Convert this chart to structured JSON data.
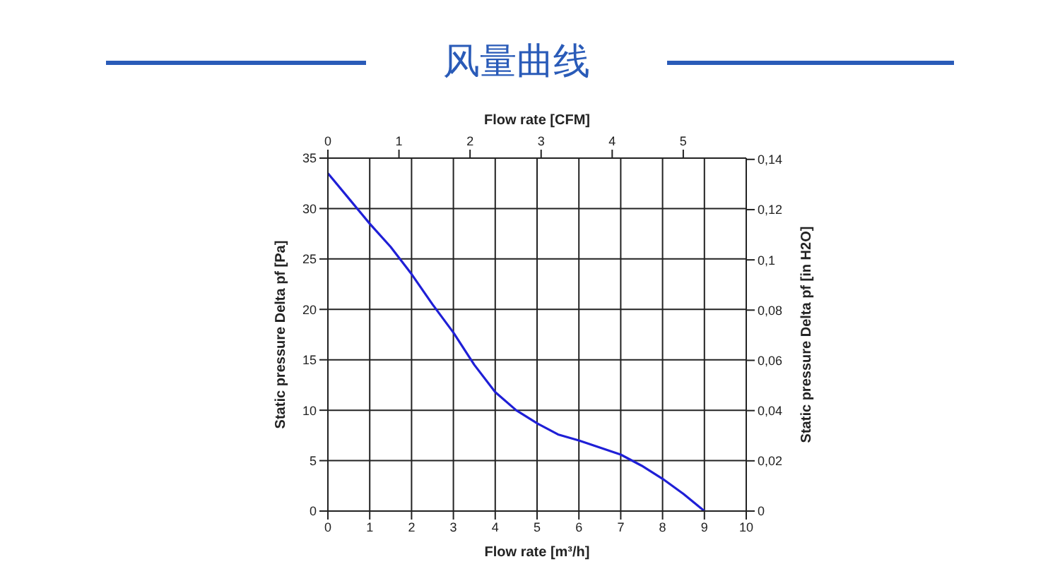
{
  "chart_data": {
    "type": "line",
    "title": "风量曲线",
    "xlabel": "Flow rate [m³/h]",
    "x2label": "Flow rate [CFM]",
    "ylabel": "Static pressure Delta pf [Pa]",
    "y2label": "Static pressure Delta pf [in H2O]",
    "x": [
      0,
      0.5,
      1,
      1.5,
      2,
      2.5,
      3,
      3.5,
      4,
      4.5,
      5,
      5.5,
      6,
      6.5,
      7,
      7.5,
      8,
      8.5,
      9
    ],
    "series": [
      {
        "color": "#1f1fd6",
        "values": [
          33.5,
          31,
          28.5,
          26.2,
          23.5,
          20.5,
          17.7,
          14.5,
          11.8,
          10,
          8.7,
          7.6,
          7,
          6.3,
          5.6,
          4.5,
          3.2,
          1.7,
          0
        ]
      }
    ],
    "xlim": [
      0,
      10
    ],
    "xticks": [
      0,
      1,
      2,
      3,
      4,
      5,
      6,
      7,
      8,
      9,
      10
    ],
    "x2lim": [
      0,
      5.886
    ],
    "x2ticks": [
      0,
      1,
      2,
      3,
      4,
      5
    ],
    "ylim": [
      0,
      35
    ],
    "yticks": [
      0,
      5,
      10,
      15,
      20,
      25,
      30,
      35
    ],
    "y2lim": [
      0,
      0.1405
    ],
    "y2ticks": [
      0,
      {
        "value": 0.02,
        "label": "0,02"
      },
      {
        "value": 0.04,
        "label": "0,04"
      },
      {
        "value": 0.06,
        "label": "0,06"
      },
      {
        "value": 0.08,
        "label": "0,08"
      },
      {
        "value": 0.1,
        "label": "0,1"
      },
      {
        "value": 0.12,
        "label": "0,12"
      },
      {
        "value": 0.14,
        "label": "0,14"
      }
    ],
    "grid": true,
    "legend": false,
    "marker": "none",
    "line_style": "solid"
  }
}
